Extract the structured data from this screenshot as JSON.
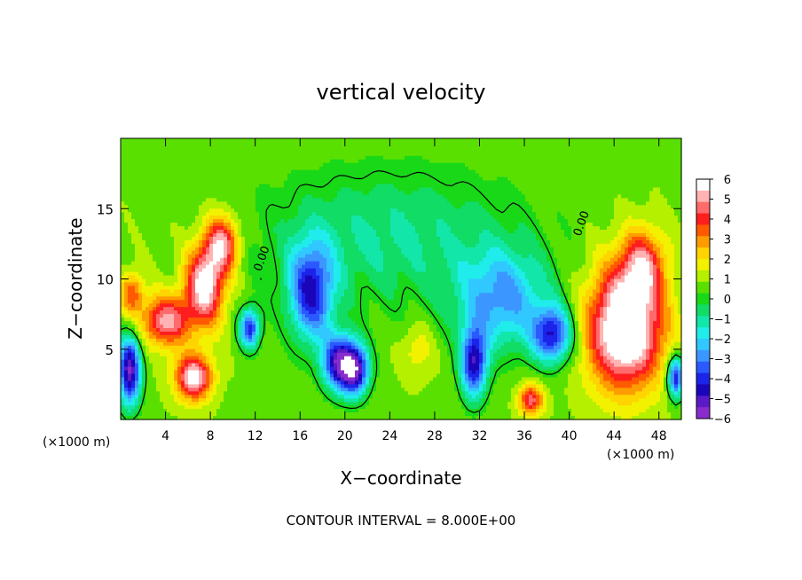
{
  "chart_data": {
    "type": "heatmap",
    "title": "vertical velocity",
    "xlabel": "X−coordinate",
    "ylabel": "Z−coordinate",
    "x_unit_left": "(×1000 m)",
    "x_unit_right": "(×1000 m)",
    "footer": "CONTOUR INTERVAL = 8.000E+00",
    "xlim": [
      0,
      50
    ],
    "ylim": [
      0,
      20
    ],
    "x_ticks": [
      4,
      8,
      12,
      16,
      20,
      24,
      28,
      32,
      36,
      40,
      44,
      48
    ],
    "x_tick_labels": [
      "4",
      "8",
      "12",
      "16",
      "20",
      "24",
      "28",
      "32",
      "36",
      "40",
      "44",
      "48"
    ],
    "y_ticks": [
      5,
      10,
      15
    ],
    "y_tick_labels": [
      "5",
      "10",
      "15"
    ],
    "contour_labels": [
      {
        "text": "0.00",
        "x": 12.5,
        "y": 10.5
      },
      {
        "text": "0.00",
        "x": 41.0,
        "y": 13.0
      }
    ],
    "colorbar": {
      "min": -6,
      "max": 6,
      "labels": [
        "6",
        "5",
        "4",
        "3",
        "2",
        "1",
        "0",
        "−1",
        "−2",
        "−3",
        "−4",
        "−5",
        "−6"
      ],
      "colors": [
        "#ffffff",
        "#ffb3b3",
        "#ff6a6a",
        "#ff1e1e",
        "#ff5a00",
        "#ff9c00",
        "#ffd400",
        "#f2f200",
        "#b4f000",
        "#5ae000",
        "#18d818",
        "#10dc66",
        "#12e6a8",
        "#20ecec",
        "#30c8ff",
        "#3c96ff",
        "#2a5aff",
        "#1c24ea",
        "#1a06b8",
        "#5a1ac8",
        "#8a2ccc"
      ]
    },
    "features": [
      {
        "kind": "updraft",
        "x": 4.0,
        "z": 7.0,
        "rx": 2.2,
        "rz": 1.8,
        "amp": 4.5
      },
      {
        "kind": "updraft",
        "x": 7.5,
        "z": 9.5,
        "rx": 1.8,
        "rz": 2.8,
        "amp": 5.5
      },
      {
        "kind": "updraft",
        "x": 9.0,
        "z": 12.5,
        "rx": 1.5,
        "rz": 2.0,
        "amp": 4.5
      },
      {
        "kind": "updraft",
        "x": 6.5,
        "z": 3.0,
        "rx": 1.6,
        "rz": 1.6,
        "amp": 5.5
      },
      {
        "kind": "updraft",
        "x": 45.0,
        "z": 6.5,
        "rx": 3.3,
        "rz": 4.2,
        "amp": 7.0
      },
      {
        "kind": "updraft",
        "x": 46.5,
        "z": 11.0,
        "rx": 2.0,
        "rz": 2.5,
        "amp": 3.5
      },
      {
        "kind": "updraft",
        "x": 36.6,
        "z": 1.4,
        "rx": 1.1,
        "rz": 1.1,
        "amp": 4.0
      },
      {
        "kind": "updraft",
        "x": 1.0,
        "z": 9.0,
        "rx": 1.0,
        "rz": 1.5,
        "amp": 3.0
      },
      {
        "kind": "updraft",
        "x": 26.5,
        "z": 5.0,
        "rx": 1.5,
        "rz": 2.0,
        "amp": 1.2
      },
      {
        "kind": "downdraft",
        "x": 0.8,
        "z": 3.5,
        "rx": 1.0,
        "rz": 2.5,
        "amp": -6.5
      },
      {
        "kind": "downdraft",
        "x": 11.5,
        "z": 6.5,
        "rx": 0.9,
        "rz": 1.4,
        "amp": -5.0
      },
      {
        "kind": "downdraft",
        "x": 17.0,
        "z": 9.0,
        "rx": 2.0,
        "rz": 3.5,
        "amp": -5.0
      },
      {
        "kind": "downdraft",
        "x": 19.5,
        "z": 4.0,
        "rx": 1.5,
        "rz": 2.0,
        "amp": -6.0
      },
      {
        "kind": "downdraft",
        "x": 21.0,
        "z": 3.5,
        "rx": 1.2,
        "rz": 1.8,
        "amp": -5.5
      },
      {
        "kind": "downdraft",
        "x": 31.5,
        "z": 4.0,
        "rx": 1.2,
        "rz": 2.5,
        "amp": -5.5
      },
      {
        "kind": "downdraft",
        "x": 34.0,
        "z": 8.5,
        "rx": 4.0,
        "rz": 3.5,
        "amp": -3.5
      },
      {
        "kind": "downdraft",
        "x": 38.5,
        "z": 6.0,
        "rx": 1.8,
        "rz": 2.0,
        "amp": -5.0
      },
      {
        "kind": "downdraft",
        "x": 49.5,
        "z": 3.0,
        "rx": 0.7,
        "rz": 1.5,
        "amp": -5.5
      },
      {
        "kind": "downdraft",
        "x": 24.0,
        "z": 13.0,
        "rx": 12.0,
        "rz": 5.0,
        "amp": -1.8
      }
    ]
  }
}
